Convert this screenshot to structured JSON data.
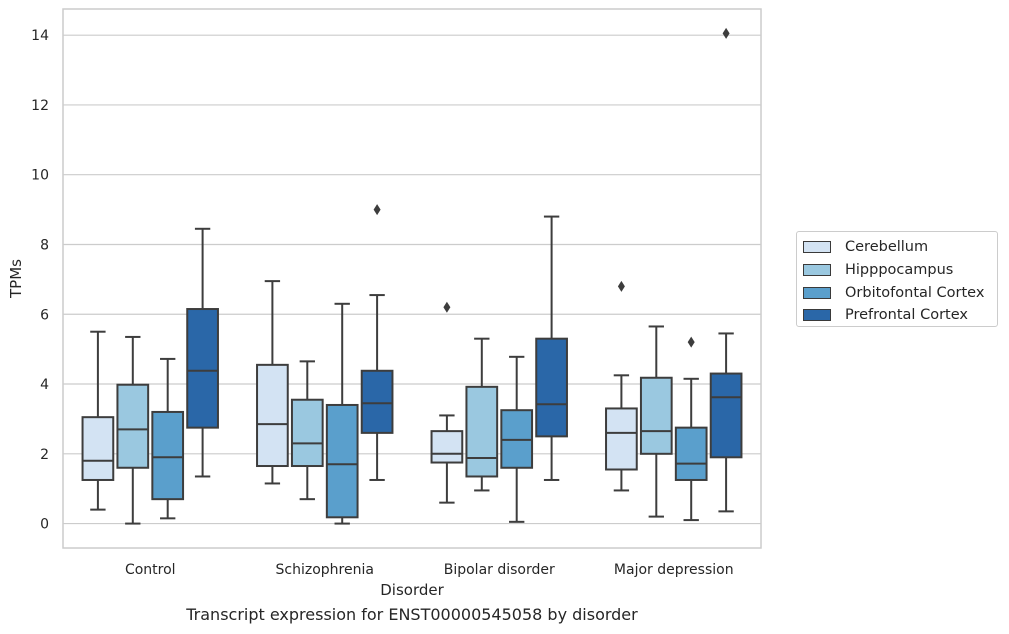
{
  "chart_data": {
    "type": "box",
    "title": "",
    "caption": "Transcript expression for ENST00000545058 by disorder",
    "xlabel": "Disorder",
    "ylabel": "TPMs",
    "ylim": [
      -0.7,
      14.75
    ],
    "yticks": [
      0,
      2,
      4,
      6,
      8,
      10,
      12,
      14
    ],
    "grid": "horizontal",
    "legend_position": "right",
    "categories": [
      "Control",
      "Schizophrenia",
      "Bipolar disorder",
      "Major depression"
    ],
    "series": [
      {
        "name": "Cerebellum",
        "color": "#d3e3f3",
        "boxes": [
          {
            "whisker_low": 0.4,
            "q1": 1.25,
            "median": 1.8,
            "q3": 3.05,
            "whisker_high": 5.5,
            "outliers": []
          },
          {
            "whisker_low": 1.15,
            "q1": 1.65,
            "median": 2.85,
            "q3": 4.55,
            "whisker_high": 6.95,
            "outliers": []
          },
          {
            "whisker_low": 0.6,
            "q1": 1.75,
            "median": 2.0,
            "q3": 2.65,
            "whisker_high": 3.1,
            "outliers": [
              6.2
            ]
          },
          {
            "whisker_low": 0.95,
            "q1": 1.55,
            "median": 2.6,
            "q3": 3.3,
            "whisker_high": 4.25,
            "outliers": [
              6.8
            ]
          }
        ]
      },
      {
        "name": "Hipppocampus",
        "color": "#9ac8e0",
        "boxes": [
          {
            "whisker_low": 0.0,
            "q1": 1.6,
            "median": 2.7,
            "q3": 3.98,
            "whisker_high": 5.35,
            "outliers": []
          },
          {
            "whisker_low": 0.7,
            "q1": 1.65,
            "median": 2.3,
            "q3": 3.55,
            "whisker_high": 4.65,
            "outliers": []
          },
          {
            "whisker_low": 0.95,
            "q1": 1.35,
            "median": 1.88,
            "q3": 3.92,
            "whisker_high": 5.3,
            "outliers": []
          },
          {
            "whisker_low": 0.2,
            "q1": 2.0,
            "median": 2.65,
            "q3": 4.18,
            "whisker_high": 5.65,
            "outliers": []
          }
        ]
      },
      {
        "name": "Orbitofontal Cortex",
        "color": "#5a9fcc",
        "boxes": [
          {
            "whisker_low": 0.15,
            "q1": 0.7,
            "median": 1.9,
            "q3": 3.2,
            "whisker_high": 4.72,
            "outliers": []
          },
          {
            "whisker_low": 0.0,
            "q1": 0.18,
            "median": 1.7,
            "q3": 3.4,
            "whisker_high": 6.3,
            "outliers": []
          },
          {
            "whisker_low": 0.05,
            "q1": 1.6,
            "median": 2.4,
            "q3": 3.25,
            "whisker_high": 4.78,
            "outliers": []
          },
          {
            "whisker_low": 0.1,
            "q1": 1.25,
            "median": 1.72,
            "q3": 2.75,
            "whisker_high": 4.15,
            "outliers": [
              5.2
            ]
          }
        ]
      },
      {
        "name": "Prefrontal Cortex",
        "color": "#2a67a8",
        "boxes": [
          {
            "whisker_low": 1.35,
            "q1": 2.75,
            "median": 4.38,
            "q3": 6.15,
            "whisker_high": 8.45,
            "outliers": []
          },
          {
            "whisker_low": 1.25,
            "q1": 2.6,
            "median": 3.45,
            "q3": 4.38,
            "whisker_high": 6.55,
            "outliers": [
              9.0
            ]
          },
          {
            "whisker_low": 1.25,
            "q1": 2.5,
            "median": 3.42,
            "q3": 5.3,
            "whisker_high": 8.8,
            "outliers": []
          },
          {
            "whisker_low": 0.35,
            "q1": 1.9,
            "median": 3.62,
            "q3": 4.3,
            "whisker_high": 5.45,
            "outliers": [
              14.05
            ]
          }
        ]
      }
    ]
  }
}
